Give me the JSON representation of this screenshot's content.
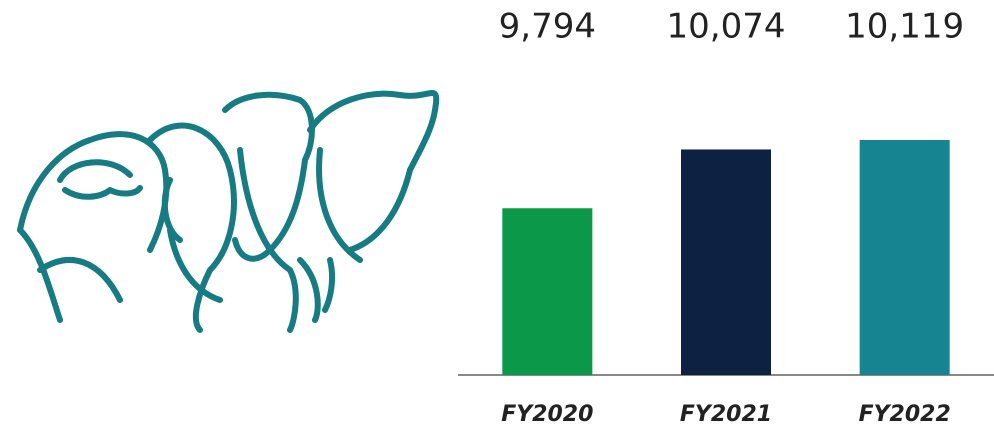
{
  "chart_data": {
    "type": "bar",
    "categories": [
      "FY2020",
      "FY2021",
      "FY2022"
    ],
    "values": [
      9794,
      10074,
      10119
    ],
    "value_labels": [
      "9,794",
      "10,074",
      "10,119"
    ],
    "colors": [
      "#0b9849",
      "#0d2142",
      "#168491"
    ],
    "ylim": [
      9000,
      10500
    ]
  }
}
